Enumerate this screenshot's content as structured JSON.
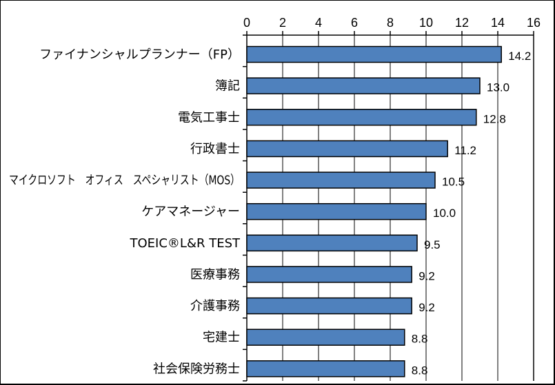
{
  "chart_data": {
    "type": "bar",
    "orientation": "horizontal",
    "categories": [
      "ファイナンシャルプランナー（FP）",
      "簿記",
      "電気工事士",
      "行政書士",
      "マイクロソフト　オフィス　スペシャリスト（MOS）",
      "ケアマネージャー",
      "TOEIC®L&R TEST",
      "医療事務",
      "介護事務",
      "宅建士",
      "社会保険労務士"
    ],
    "values": [
      14.2,
      13.0,
      12.8,
      11.2,
      10.5,
      10.0,
      9.5,
      9.2,
      9.2,
      8.8,
      8.8
    ],
    "value_labels": [
      "14.2",
      "13.0",
      "12.8",
      "11.2",
      "10.5",
      "10.0",
      "9.5",
      "9.2",
      "9.2",
      "8.8",
      "8.8"
    ],
    "xlim": [
      0,
      16
    ],
    "xticks": [
      "0",
      "2",
      "4",
      "6",
      "8",
      "10",
      "12",
      "14",
      "16"
    ],
    "axis_position": "top",
    "grid": true,
    "bar_color": "#4f81bd",
    "bar_edge_color": "#000000",
    "title": "",
    "xlabel": "",
    "ylabel": ""
  }
}
